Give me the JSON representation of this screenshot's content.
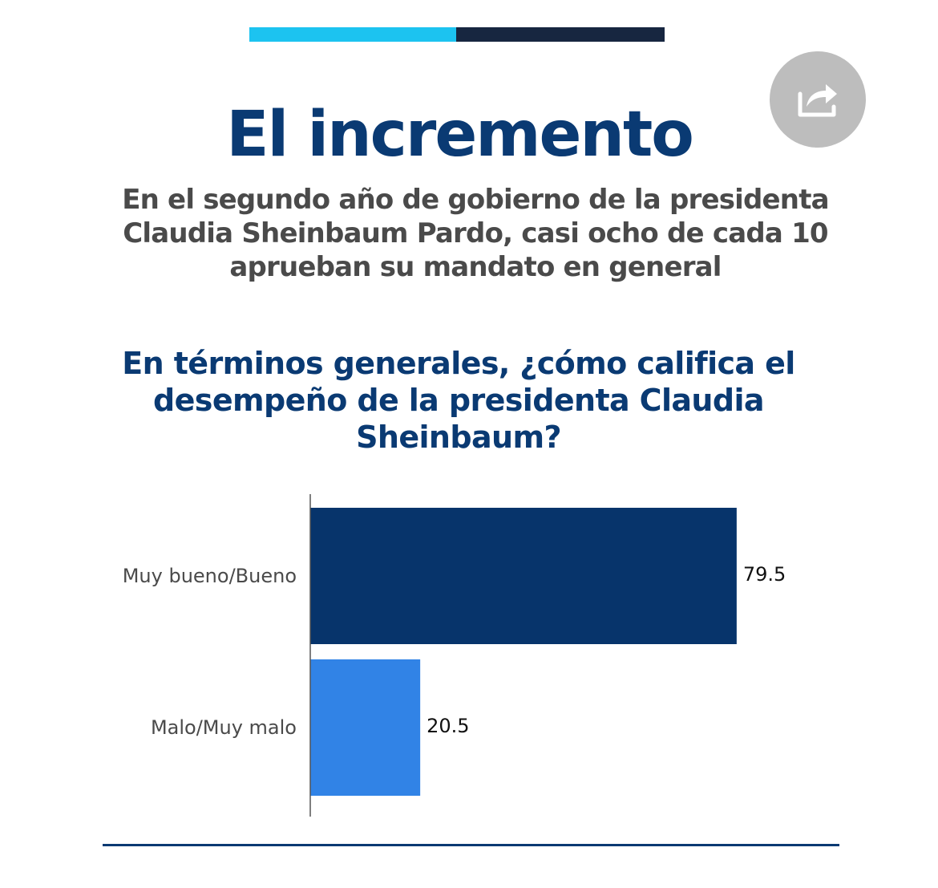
{
  "header": {
    "title": "El incremento",
    "subtitle": "En el segundo año de gobierno de la presidenta Claudia Sheinbaum Pardo, casi ocho de cada 10 aprueban su mandato en general",
    "share_icon": "share-icon"
  },
  "colors": {
    "title": "#0a3a73",
    "subtitle": "#4a4a4a",
    "question": "#0a3a73",
    "bar_top_light": "#1cc3f0",
    "bar_top_dark": "#172640",
    "bottom_rule": "#0a3a73",
    "share_bg": "#bdbdbd",
    "share_icon": "#ffffff"
  },
  "chart_data": {
    "type": "bar",
    "orientation": "horizontal",
    "title": "En términos generales, ¿cómo califica el desempeño de la presidenta Claudia Sheinbaum?",
    "categories": [
      "Muy bueno/Bueno",
      "Malo/Muy malo"
    ],
    "values": [
      79.5,
      20.5
    ],
    "value_labels": [
      "79.5",
      "20.5"
    ],
    "colors": [
      "#07346b",
      "#3183e6"
    ],
    "xlim": [
      0,
      100
    ],
    "grid": false,
    "legend": "none"
  }
}
